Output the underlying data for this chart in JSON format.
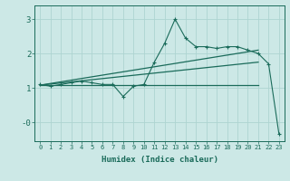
{
  "xlabel": "Humidex (Indice chaleur)",
  "bg_color": "#cce8e6",
  "line_color": "#1a6b5a",
  "grid_color": "#aed4d1",
  "x": [
    0,
    1,
    2,
    3,
    4,
    5,
    6,
    7,
    8,
    9,
    10,
    11,
    12,
    13,
    14,
    15,
    16,
    17,
    18,
    19,
    20,
    21,
    22,
    23
  ],
  "y_data": [
    1.1,
    1.05,
    1.1,
    1.15,
    1.2,
    1.15,
    1.1,
    1.1,
    0.75,
    1.05,
    1.1,
    1.75,
    2.3,
    3.0,
    2.45,
    2.2,
    2.2,
    2.15,
    2.2,
    2.2,
    2.1,
    2.0,
    1.7,
    -0.35
  ],
  "y_line1_start": 1.08,
  "y_line1_end": 2.1,
  "y_line2_start": 1.08,
  "y_line2_end": 1.75,
  "y_flat": 1.08,
  "ylim": [
    -0.55,
    3.4
  ],
  "xlim": [
    -0.5,
    23.5
  ]
}
